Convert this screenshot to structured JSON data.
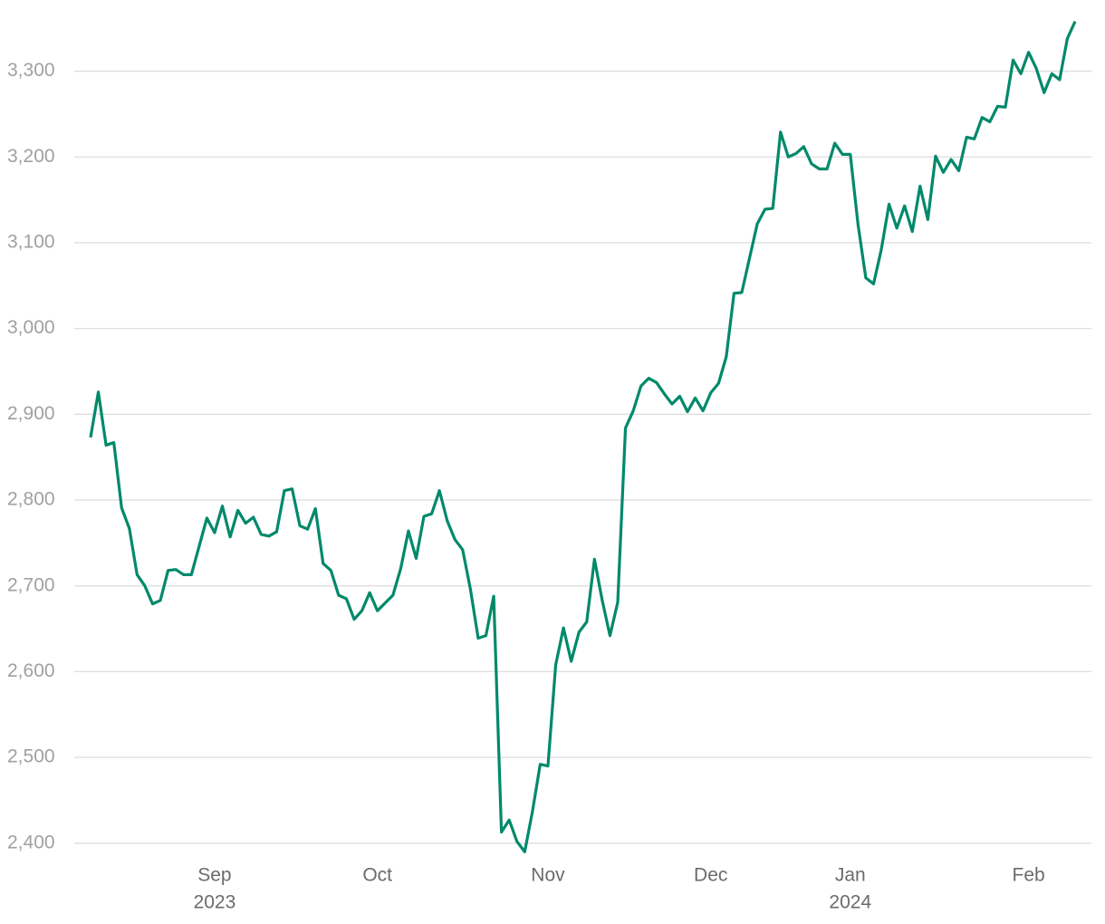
{
  "chart_data": {
    "type": "line",
    "categories": [
      null,
      null,
      null,
      null,
      null,
      null,
      null,
      null,
      null,
      null,
      null,
      null,
      null,
      null,
      null,
      null,
      "Sep",
      null,
      null,
      null,
      null,
      null,
      null,
      null,
      null,
      null,
      null,
      null,
      null,
      null,
      null,
      null,
      null,
      null,
      null,
      null,
      null,
      "Oct",
      null,
      null,
      null,
      null,
      null,
      null,
      null,
      null,
      null,
      null,
      null,
      null,
      null,
      null,
      null,
      null,
      null,
      null,
      null,
      null,
      null,
      "Nov",
      null,
      null,
      null,
      null,
      null,
      null,
      null,
      null,
      null,
      null,
      null,
      null,
      null,
      null,
      null,
      null,
      null,
      null,
      null,
      null,
      "Dec",
      null,
      null,
      null,
      null,
      null,
      null,
      null,
      null,
      null,
      null,
      null,
      null,
      null,
      null,
      null,
      null,
      null,
      "Jan",
      null,
      null,
      null,
      null,
      null,
      null,
      null,
      null,
      null,
      null,
      null,
      null,
      null,
      null,
      null,
      null,
      null,
      null,
      null,
      null,
      null,
      null,
      "Feb",
      null,
      null,
      null,
      null,
      null,
      null
    ],
    "category_years": [
      null,
      null,
      null,
      null,
      null,
      null,
      null,
      null,
      null,
      null,
      null,
      null,
      null,
      null,
      null,
      null,
      "2023",
      null,
      null,
      null,
      null,
      null,
      null,
      null,
      null,
      null,
      null,
      null,
      null,
      null,
      null,
      null,
      null,
      null,
      null,
      null,
      null,
      null,
      null,
      null,
      null,
      null,
      null,
      null,
      null,
      null,
      null,
      null,
      null,
      null,
      null,
      null,
      null,
      null,
      null,
      null,
      null,
      null,
      null,
      null,
      null,
      null,
      null,
      null,
      null,
      null,
      null,
      null,
      null,
      null,
      null,
      null,
      null,
      null,
      null,
      null,
      null,
      null,
      null,
      null,
      null,
      null,
      null,
      null,
      null,
      null,
      null,
      null,
      null,
      null,
      null,
      null,
      null,
      null,
      null,
      null,
      null,
      null,
      "2024",
      null,
      null,
      null,
      null,
      null,
      null,
      null,
      null,
      null,
      null,
      null,
      null,
      null,
      null,
      null,
      null,
      null,
      null,
      null,
      null,
      null,
      null,
      null,
      null,
      null,
      null,
      null,
      null,
      null
    ],
    "values": [
      2873,
      2926,
      2864,
      2867,
      2791,
      2767,
      2713,
      2700,
      2679,
      2683,
      2718,
      2719,
      2713,
      2713,
      2746,
      2779,
      2762,
      2793,
      2757,
      2788,
      2773,
      2780,
      2760,
      2758,
      2763,
      2811,
      2813,
      2770,
      2766,
      2790,
      2726,
      2718,
      2689,
      2685,
      2661,
      2671,
      2692,
      2671,
      2680,
      2689,
      2720,
      2764,
      2732,
      2781,
      2784,
      2811,
      2776,
      2754,
      2742,
      2696,
      2639,
      2642,
      2688,
      2413,
      2427,
      2402,
      2390,
      2437,
      2492,
      2490,
      2608,
      2651,
      2612,
      2646,
      2658,
      2731,
      2683,
      2642,
      2681,
      2884,
      2904,
      2933,
      2942,
      2937,
      2924,
      2912,
      2921,
      2903,
      2919,
      2904,
      2925,
      2936,
      2967,
      3041,
      3042,
      3082,
      3122,
      3139,
      3140,
      3229,
      3200,
      3204,
      3212,
      3192,
      3186,
      3186,
      3216,
      3203,
      3203,
      3121,
      3059,
      3052,
      3092,
      3145,
      3117,
      3143,
      3113,
      3166,
      3127,
      3201,
      3182,
      3197,
      3184,
      3223,
      3221,
      3246,
      3241,
      3259,
      3258,
      3313,
      3297,
      3322,
      3303,
      3275,
      3297,
      3290,
      3338,
      3358
    ],
    "color": "#00896a",
    "ylim": [
      2385,
      3365
    ],
    "yticks": [
      {
        "value": 2400,
        "label": "2,400"
      },
      {
        "value": 2500,
        "label": "2,500"
      },
      {
        "value": 2600,
        "label": "2,600"
      },
      {
        "value": 2700,
        "label": "2,700"
      },
      {
        "value": 2800,
        "label": "2,800"
      },
      {
        "value": 2900,
        "label": "2,900"
      },
      {
        "value": 3000,
        "label": "3,000"
      },
      {
        "value": 3100,
        "label": "3,100"
      },
      {
        "value": 3200,
        "label": "3,200"
      },
      {
        "value": 3300,
        "label": "3,300"
      }
    ],
    "grid": true
  }
}
